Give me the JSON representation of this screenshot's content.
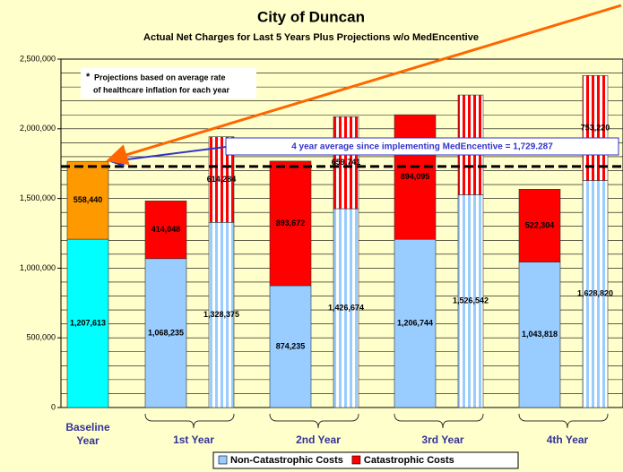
{
  "chart_data": {
    "type": "bar",
    "stacked": true,
    "title": "City of Duncan",
    "subtitle": "Actual Net Charges for Last 5 Years Plus Projections w/o MedEncentive",
    "groups": [
      "Baseline Year",
      "1st Year",
      "2nd Year",
      "3rd Year",
      "4th Year"
    ],
    "bar_group": [
      0,
      1,
      1,
      2,
      2,
      3,
      3,
      4,
      4
    ],
    "projected": [
      false,
      false,
      true,
      false,
      true,
      false,
      true,
      false,
      true
    ],
    "baseline_colors": [
      "#00ffff",
      "#ff9900"
    ],
    "series": [
      {
        "name": "Non-Catastrophic Costs",
        "color": "#99ccff",
        "values": [
          1207613,
          1068235,
          1328375,
          874235,
          1426674,
          1206744,
          1526542,
          1043818,
          1628820
        ],
        "value_labels": [
          "1,207,613",
          "1,068,235",
          "1,328,375",
          "874,235",
          "1,426,674",
          "1,206,744",
          "1,526,542",
          "1,043,818",
          "1,628,820"
        ]
      },
      {
        "name": "Catastrophic Costs",
        "color": "#ff0000",
        "values": [
          558440,
          414048,
          614284,
          893672,
          659741,
          894095,
          716000,
          522304,
          753220
        ],
        "value_labels": [
          "558,440",
          "414,048",
          "614,284",
          "893,672",
          "659,741",
          "894,095",
          null,
          "522,304",
          "753,220"
        ]
      }
    ],
    "ylim": [
      0,
      2500000
    ],
    "yticks": [
      0,
      {
        "value": 500000,
        "label": "500,000"
      },
      {
        "value": 1000000,
        "label": "1,000,000"
      },
      {
        "value": 1500000,
        "label": "1,500,000"
      },
      {
        "value": 2000000,
        "label": "2,000,000"
      },
      {
        "value": 2500000,
        "label": "2,500,000"
      }
    ],
    "ygrid_step": 100000,
    "average": {
      "value": 1729287,
      "label": "4 year average since implementing MedEncentive = 1,729.287"
    },
    "note": {
      "marker": "*",
      "lines": [
        "Projections based on average rate",
        "of healthcare inflation for each year"
      ]
    },
    "legend": "bottom"
  }
}
